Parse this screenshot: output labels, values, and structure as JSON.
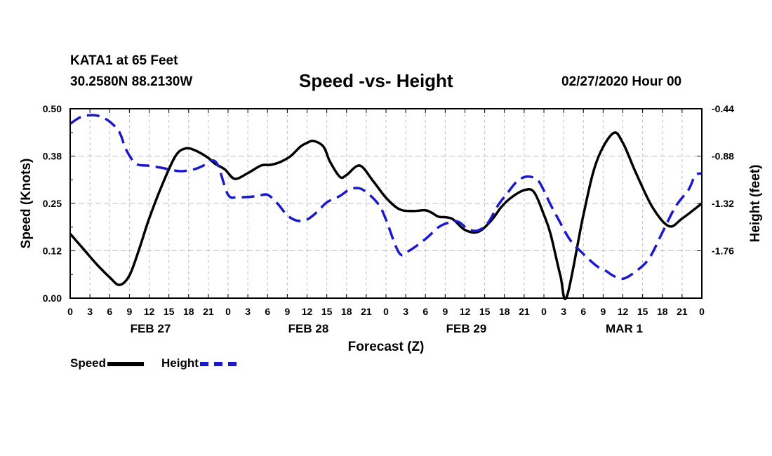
{
  "header": {
    "station": "KATA1 at 65 Feet",
    "coords": "30.2580N 88.2130W",
    "title": "Speed -vs- Height",
    "run_time": "02/27/2020 Hour 00"
  },
  "colors": {
    "speed": "#000000",
    "height": "#1a1acc",
    "grid": "#bdbdbd"
  },
  "chart_data": {
    "type": "line",
    "title": "Speed -vs- Height",
    "xlabel": "Forecast (Z)",
    "ylabel": "Speed (Knots)",
    "y2label": "Height (feet)",
    "x_hours_range": [
      0,
      96
    ],
    "ylim": [
      0,
      0.5
    ],
    "y2lim": [
      -2.2,
      -0.44
    ],
    "y_ticks": [
      "0.00",
      "0.12",
      "0.25",
      "0.38",
      "0.50"
    ],
    "y_tick_values": [
      0,
      0.125,
      0.25,
      0.375,
      0.5
    ],
    "y2_ticks": [
      "-0.44",
      "-0.88",
      "-1.32",
      "-1.76"
    ],
    "y2_tick_values": [
      -0.44,
      -0.88,
      -1.32,
      -1.76
    ],
    "x_tick_labels": [
      "0",
      "3",
      "6",
      "9",
      "12",
      "15",
      "18",
      "21",
      "0",
      "3",
      "6",
      "9",
      "12",
      "15",
      "18",
      "21",
      "0",
      "3",
      "6",
      "9",
      "12",
      "15",
      "18",
      "21",
      "0",
      "3",
      "6",
      "9",
      "12",
      "15",
      "18",
      "21",
      "0"
    ],
    "day_labels": [
      {
        "label": "FEB 27",
        "hour": 12
      },
      {
        "label": "FEB 28",
        "hour": 36
      },
      {
        "label": "FEB 29",
        "hour": 60
      },
      {
        "label": "MAR 1",
        "hour": 84
      }
    ],
    "legend": [
      "Speed",
      "Height"
    ],
    "series": [
      {
        "name": "Speed",
        "axis": "left",
        "style": "solid",
        "x": [
          0,
          2,
          4,
          6,
          7.5,
          9,
          10.5,
          12,
          14,
          16,
          17.5,
          19,
          21,
          22,
          23.5,
          25,
          27,
          29,
          30.5,
          32,
          33.5,
          35,
          36,
          37,
          38.5,
          39.5,
          41,
          42,
          44,
          46,
          48,
          50,
          52,
          54,
          55,
          56,
          58,
          60,
          62,
          64,
          65.5,
          67,
          69,
          70.5,
          72,
          73,
          74.5,
          75.5,
          78,
          80,
          82.5,
          84,
          86,
          88.5,
          91,
          93,
          96
        ],
        "values": [
          0.17,
          0.13,
          0.09,
          0.055,
          0.035,
          0.06,
          0.13,
          0.21,
          0.3,
          0.375,
          0.395,
          0.39,
          0.37,
          0.355,
          0.34,
          0.315,
          0.33,
          0.35,
          0.352,
          0.36,
          0.375,
          0.4,
          0.41,
          0.415,
          0.4,
          0.36,
          0.32,
          0.325,
          0.35,
          0.31,
          0.265,
          0.235,
          0.23,
          0.232,
          0.225,
          0.215,
          0.21,
          0.18,
          0.175,
          0.205,
          0.24,
          0.265,
          0.285,
          0.28,
          0.22,
          0.17,
          0.06,
          0.005,
          0.22,
          0.36,
          0.435,
          0.41,
          0.33,
          0.24,
          0.19,
          0.21,
          0.25
        ]
      },
      {
        "name": "Height",
        "axis": "right",
        "style": "dashed",
        "x": [
          0,
          1.5,
          3,
          4.5,
          6,
          7.5,
          8.5,
          10,
          12,
          14,
          15.5,
          17,
          19,
          20.5,
          21.5,
          22.5,
          24,
          25.5,
          27,
          28.5,
          30,
          31.5,
          33,
          34.5,
          36,
          37.5,
          39,
          41,
          42.5,
          44,
          45.5,
          47,
          48,
          50,
          51.5,
          54,
          56,
          57.5,
          59,
          60.5,
          62,
          63.5,
          65,
          66.5,
          68,
          69.5,
          71,
          72,
          73,
          74.5,
          76,
          78,
          80,
          81.5,
          82.5,
          84,
          86,
          88,
          90,
          92,
          94,
          95,
          96
        ],
        "values": [
          -0.58,
          -0.52,
          -0.5,
          -0.51,
          -0.56,
          -0.66,
          -0.82,
          -0.95,
          -0.97,
          -0.99,
          -1.01,
          -1.02,
          -1.0,
          -0.96,
          -0.92,
          -0.97,
          -1.24,
          -1.26,
          -1.26,
          -1.25,
          -1.24,
          -1.32,
          -1.43,
          -1.48,
          -1.47,
          -1.4,
          -1.31,
          -1.25,
          -1.19,
          -1.18,
          -1.24,
          -1.34,
          -1.47,
          -1.78,
          -1.76,
          -1.65,
          -1.54,
          -1.5,
          -1.49,
          -1.56,
          -1.57,
          -1.5,
          -1.34,
          -1.22,
          -1.11,
          -1.07,
          -1.1,
          -1.2,
          -1.33,
          -1.5,
          -1.66,
          -1.79,
          -1.9,
          -1.95,
          -1.99,
          -2.02,
          -1.95,
          -1.83,
          -1.59,
          -1.35,
          -1.19,
          -1.06,
          -1.04
        ]
      }
    ]
  },
  "legend_labels": {
    "speed": "Speed",
    "height": "Height"
  }
}
